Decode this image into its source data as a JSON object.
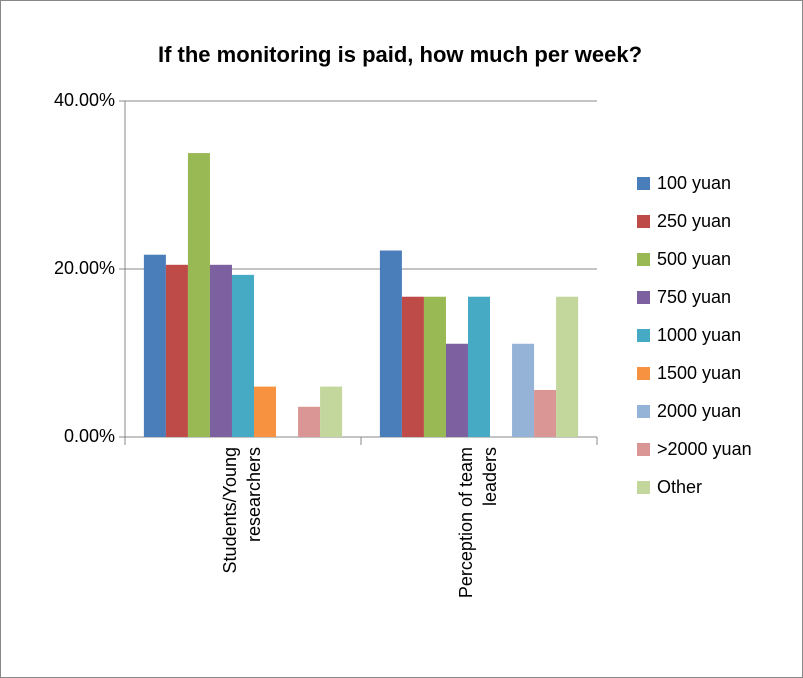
{
  "chart_data": {
    "type": "bar",
    "title": "If the monitoring is paid, how much per week?",
    "categories": [
      [
        "Students/Young",
        "researchers"
      ],
      [
        "Perception of team",
        "leaders"
      ]
    ],
    "series": [
      {
        "name": "100 yuan",
        "color": "#4a7ebb",
        "values": [
          21.7,
          22.2
        ]
      },
      {
        "name": "250 yuan",
        "color": "#be4b48",
        "values": [
          20.5,
          16.7
        ]
      },
      {
        "name": "500 yuan",
        "color": "#98b954",
        "values": [
          33.8,
          16.7
        ]
      },
      {
        "name": "750 yuan",
        "color": "#7d60a0",
        "values": [
          20.5,
          11.1
        ]
      },
      {
        "name": "1000 yuan",
        "color": "#46aac5",
        "values": [
          19.3,
          16.7
        ]
      },
      {
        "name": "1500 yuan",
        "color": "#f69240",
        "values": [
          6.0,
          0
        ]
      },
      {
        "name": "2000 yuan",
        "color": "#95b3d7",
        "values": [
          0,
          11.1
        ]
      },
      {
        "name": ">2000 yuan",
        "color": "#d99694",
        "values": [
          3.6,
          5.6
        ]
      },
      {
        "name": "Other",
        "color": "#c3d69b",
        "values": [
          6.0,
          16.7
        ]
      }
    ],
    "ylim": [
      0,
      40
    ],
    "yticks": [
      {
        "value": 0,
        "label": "0.00%"
      },
      {
        "value": 20,
        "label": "20.00%"
      },
      {
        "value": 40,
        "label": "40.00%"
      }
    ],
    "grid": true,
    "legend": "right"
  }
}
